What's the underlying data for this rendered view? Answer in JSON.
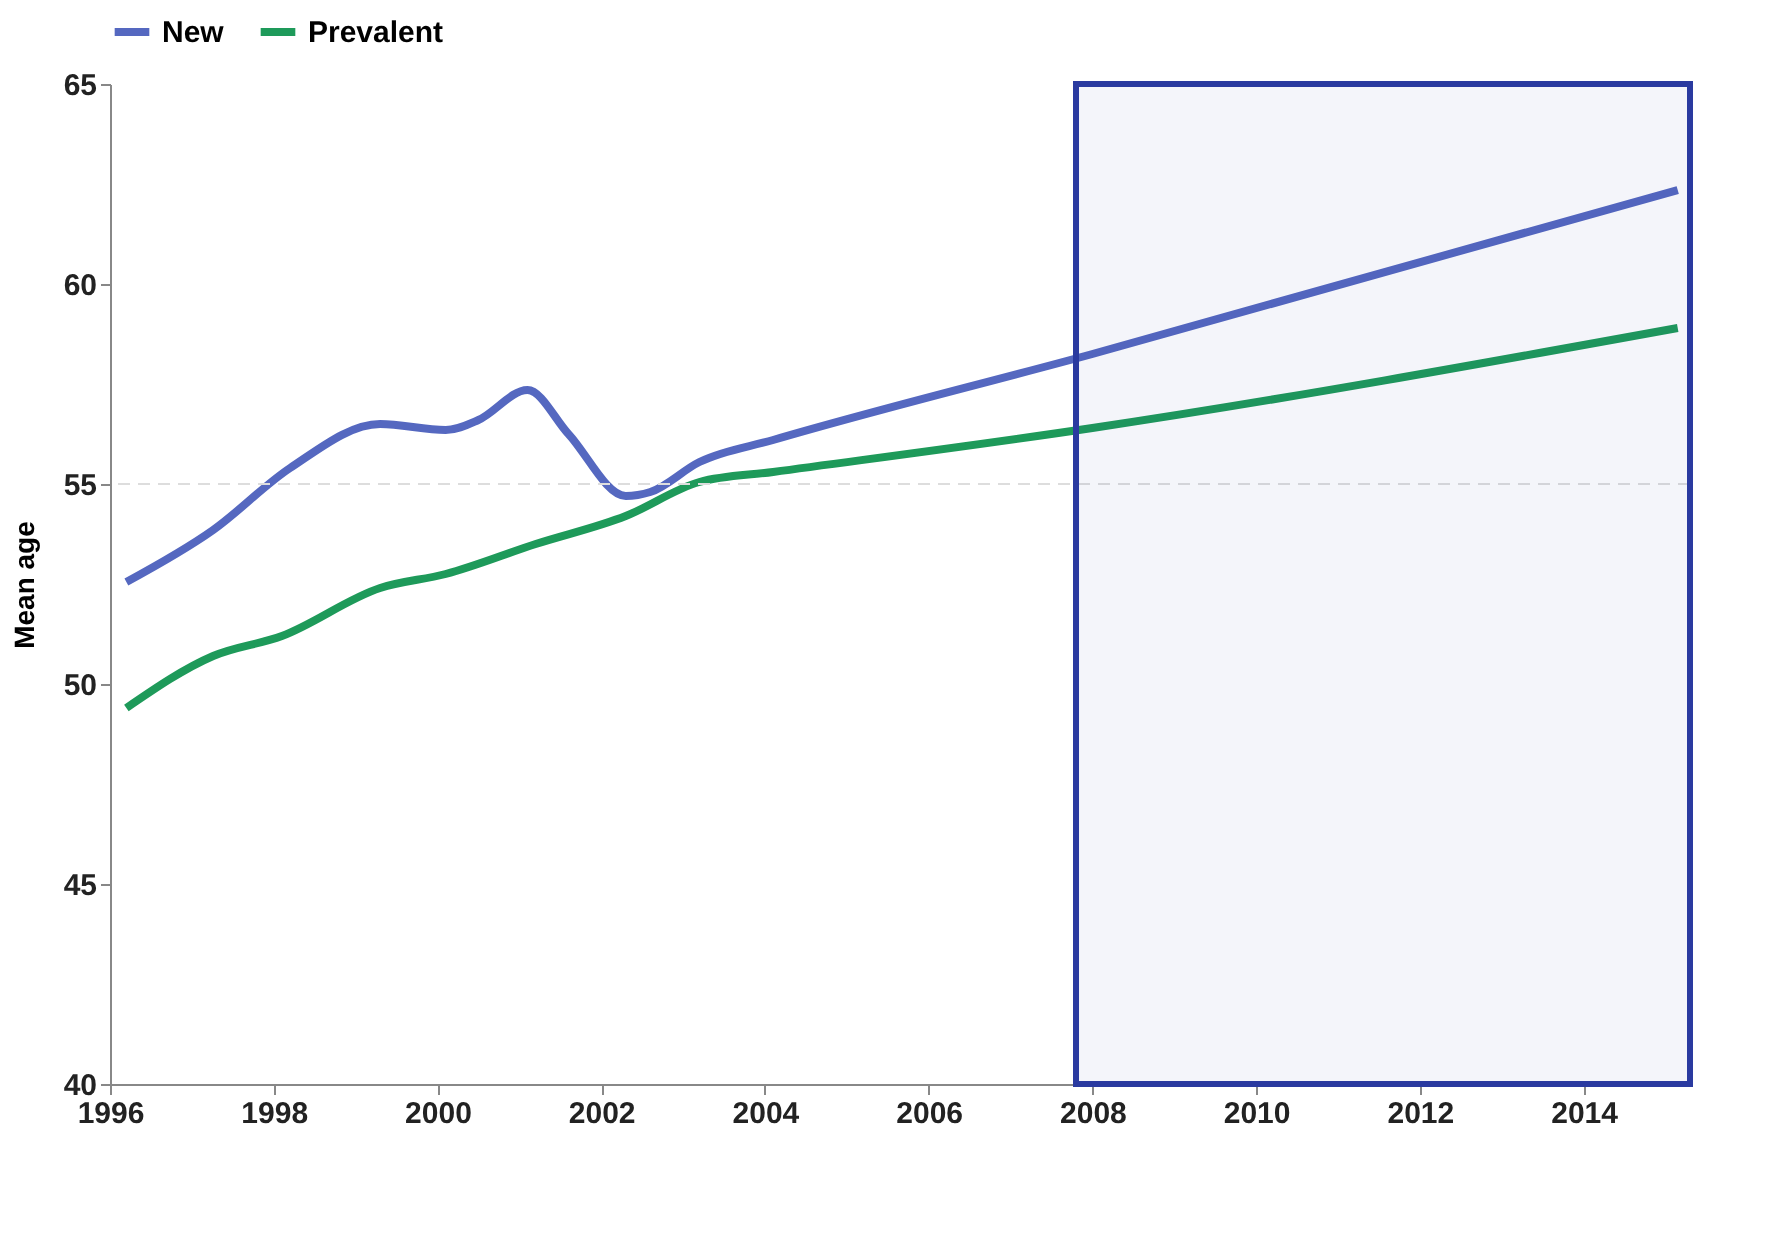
{
  "chart_data": {
    "type": "line",
    "ylabel": "Mean age",
    "xlim": [
      1996,
      2015.3
    ],
    "xticks": [
      1996,
      1998,
      2000,
      2002,
      2004,
      2006,
      2008,
      2010,
      2012,
      2014
    ],
    "ylim": [
      40,
      65
    ],
    "yticks": [
      40,
      45,
      50,
      55,
      60,
      65
    ],
    "legend": "top",
    "grid": false,
    "line_style": "solid",
    "marker": "none",
    "series": [
      {
        "name": "New",
        "color": "#5568c0",
        "x": [
          1996.2,
          1997.26,
          1998.2,
          1999.3,
          2000.1,
          2000.5,
          2001.1,
          2001.6,
          2002.3,
          2002.6,
          2003.2,
          2004.1,
          2008,
          2015.15
        ],
        "values": [
          52.55,
          53.85,
          55.4,
          56.5,
          56.35,
          56.6,
          57.35,
          56.25,
          54.7,
          54.8,
          55.55,
          56.1,
          58.25,
          62.35
        ]
      },
      {
        "name": "Prevalent",
        "color": "#1e9a5a",
        "x": [
          1996.2,
          1997.26,
          1998.1,
          1999.3,
          2000.1,
          2001.2,
          2002.3,
          2003.2,
          2004.1,
          2008,
          2015.15
        ],
        "values": [
          49.4,
          50.7,
          51.2,
          52.4,
          52.75,
          53.5,
          54.2,
          55.05,
          55.3,
          56.4,
          58.9
        ]
      }
    ],
    "ref_lines": [
      {
        "axis": "y",
        "value": 55,
        "color": "#dddddd",
        "line_style": "dashed"
      }
    ],
    "bands": [
      {
        "axis": "x",
        "from": 2007.8,
        "to": 2015.3,
        "color": "#2a3aa0"
      }
    ]
  }
}
